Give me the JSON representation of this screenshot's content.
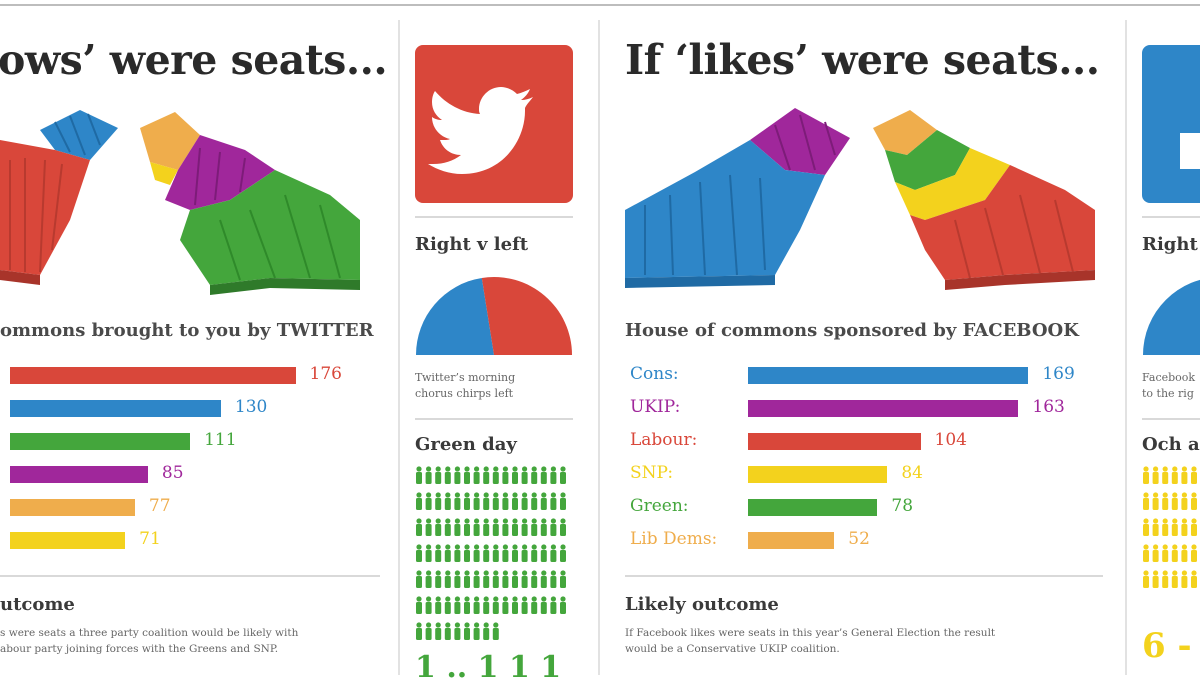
{
  "colors": {
    "red": "#d9473a",
    "blue": "#2e86c8",
    "green": "#44a63c",
    "purple": "#a0279b",
    "orange": "#efad4c",
    "yellow": "#f3d21d",
    "twitter_bg": "#d9473a",
    "facebook_bg": "#2e86c8"
  },
  "twitter_panel": {
    "title": "ows’ were seats...",
    "chart_title": "ommons brought to you by TWITTER",
    "outcome_head": "utcome",
    "outcome_text_1": "s were seats a three party coalition would be likely with",
    "outcome_text_2": "abour party joining forces with the Greens and SNP."
  },
  "twitter_side": {
    "icon": "twitter-bird-icon",
    "right_left_head": "Right v left",
    "pie_note_1": "Twitter’s morning",
    "pie_note_2": "chorus chirps left",
    "green_day_head": "Green day",
    "green_count": "1 .. 1 1 1"
  },
  "facebook_panel": {
    "title": "If ‘likes’ were seats...",
    "chart_title": "House of commons sponsored by FACEBOOK",
    "outcome_head": "Likely outcome",
    "outcome_text_1": "If Facebook likes were seats in this year’s General Election the result",
    "outcome_text_2": "would be a Conservative UKIP coalition."
  },
  "facebook_side": {
    "icon": "facebook-icon",
    "right_left_head": "Right",
    "note_1": "Facebook",
    "note_2": "to the rig",
    "och_head": "Och a",
    "big_number": "6 -"
  },
  "chart_data": [
    {
      "type": "bar",
      "orientation": "horizontal",
      "title": "ommons brought to you by TWITTER",
      "categories": [
        "",
        "",
        "",
        "",
        "",
        ""
      ],
      "values": [
        176,
        130,
        111,
        85,
        77,
        71
      ],
      "colors": [
        "#d9473a",
        "#2e86c8",
        "#44a63c",
        "#a0279b",
        "#efad4c",
        "#f3d21d"
      ],
      "xlim": [
        0,
        180
      ]
    },
    {
      "type": "bar",
      "orientation": "horizontal",
      "title": "House of commons sponsored by FACEBOOK",
      "categories": [
        "Cons:",
        "UKIP:",
        "Labour:",
        "SNP:",
        "Green:",
        "Lib Dems:"
      ],
      "values": [
        169,
        163,
        104,
        84,
        78,
        52
      ],
      "colors": [
        "#2e86c8",
        "#a0279b",
        "#d9473a",
        "#f3d21d",
        "#44a63c",
        "#efad4c"
      ],
      "xlim": [
        0,
        170
      ]
    },
    {
      "type": "pie",
      "title": "Right v left",
      "categories": [
        "Right",
        "Left"
      ],
      "values": [
        45,
        55
      ],
      "colors": [
        "#2e86c8",
        "#d9473a"
      ]
    }
  ]
}
